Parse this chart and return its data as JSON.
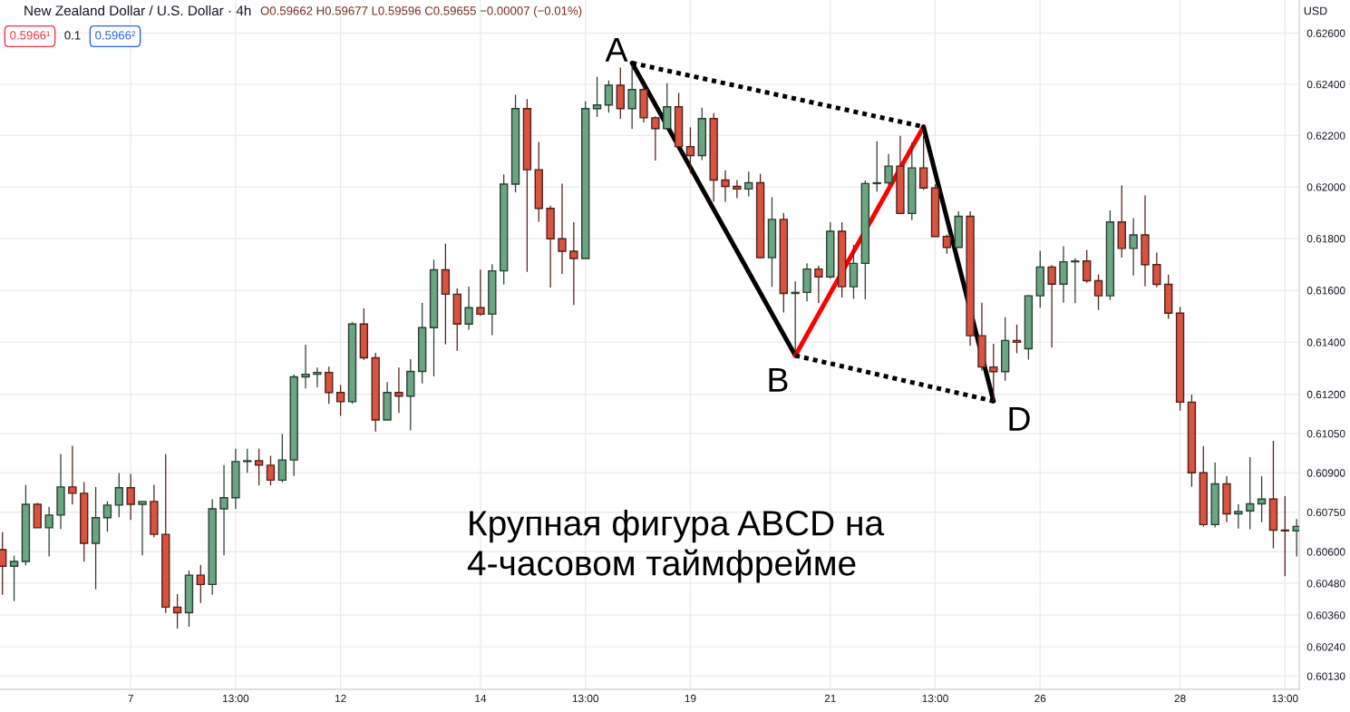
{
  "chart_data": {
    "type": "candlestick",
    "title": "New Zealand Dollar / U.S. Dollar · 4h",
    "subtitle": "O0.59662 H0.59677 L0.59596 C0.59655 −0.00007 (−0.01%)",
    "categories": [
      null,
      null,
      null,
      null,
      null,
      null,
      null,
      null,
      null,
      null,
      null,
      "7",
      null,
      null,
      null,
      null,
      null,
      null,
      null,
      null,
      "13:00",
      null,
      null,
      null,
      null,
      null,
      null,
      null,
      null,
      "12",
      null,
      null,
      null,
      null,
      null,
      null,
      null,
      null,
      null,
      null,
      null,
      "14",
      null,
      null,
      null,
      null,
      null,
      null,
      null,
      null,
      "13:00",
      null,
      null,
      null,
      null,
      null,
      null,
      null,
      null,
      "19",
      null,
      null,
      null,
      null,
      null,
      null,
      null,
      null,
      null,
      null,
      null,
      "21",
      null,
      null,
      null,
      null,
      null,
      null,
      null,
      null,
      "13:00",
      null,
      null,
      null,
      null,
      null,
      null,
      null,
      null,
      "26",
      null,
      null,
      null,
      null,
      null,
      null,
      null,
      null,
      null,
      null,
      null,
      "28",
      null,
      null,
      null,
      null,
      null,
      null,
      null,
      null,
      "13:00",
      null
    ],
    "ohlc": [
      [
        0.60608,
        0.60674,
        0.60437,
        0.60545
      ],
      [
        0.60545,
        0.60585,
        0.60413,
        0.60563
      ],
      [
        0.60563,
        0.60854,
        0.60548,
        0.6078
      ],
      [
        0.6078,
        0.60785,
        0.60691,
        0.60691
      ],
      [
        0.60691,
        0.60771,
        0.60582,
        0.60739
      ],
      [
        0.60739,
        0.60972,
        0.60686,
        0.60846
      ],
      [
        0.60846,
        0.61003,
        0.60779,
        0.60822
      ],
      [
        0.60822,
        0.60865,
        0.60562,
        0.60632
      ],
      [
        0.60632,
        0.60846,
        0.60458,
        0.60729
      ],
      [
        0.60729,
        0.60792,
        0.60676,
        0.60777
      ],
      [
        0.60777,
        0.60899,
        0.60731,
        0.60843
      ],
      [
        0.60843,
        0.60896,
        0.60721,
        0.6078
      ],
      [
        0.6078,
        0.60791,
        0.60586,
        0.60791
      ],
      [
        0.60791,
        0.60854,
        0.60655,
        0.60666
      ],
      [
        0.60666,
        0.60972,
        0.60368,
        0.6039
      ],
      [
        0.6039,
        0.60439,
        0.60309,
        0.60369
      ],
      [
        0.60369,
        0.60528,
        0.60316,
        0.60511
      ],
      [
        0.60511,
        0.6055,
        0.60406,
        0.60476
      ],
      [
        0.60476,
        0.60799,
        0.60437,
        0.60763
      ],
      [
        0.60763,
        0.6093,
        0.60586,
        0.60805
      ],
      [
        0.60805,
        0.60992,
        0.60762,
        0.60943
      ],
      [
        0.60943,
        0.60992,
        0.609,
        0.60946
      ],
      [
        0.60946,
        0.60992,
        0.60852,
        0.60929
      ],
      [
        0.60929,
        0.60965,
        0.60852,
        0.60872
      ],
      [
        0.60872,
        0.61048,
        0.60864,
        0.60949
      ],
      [
        0.60949,
        0.61277,
        0.60888,
        0.61267
      ],
      [
        0.61267,
        0.61391,
        0.61223,
        0.61277
      ],
      [
        0.61277,
        0.61303,
        0.61227,
        0.61284
      ],
      [
        0.61284,
        0.61306,
        0.61164,
        0.61207
      ],
      [
        0.61207,
        0.61236,
        0.61118,
        0.61172
      ],
      [
        0.61172,
        0.61477,
        0.61164,
        0.6147
      ],
      [
        0.6147,
        0.6153,
        0.61332,
        0.6134
      ],
      [
        0.6134,
        0.61359,
        0.61058,
        0.61102
      ],
      [
        0.61102,
        0.61247,
        0.61102,
        0.61207
      ],
      [
        0.61207,
        0.61303,
        0.61129,
        0.61193
      ],
      [
        0.61193,
        0.61335,
        0.61062,
        0.61288
      ],
      [
        0.61288,
        0.61551,
        0.61242,
        0.61456
      ],
      [
        0.61456,
        0.61718,
        0.61269,
        0.61679
      ],
      [
        0.61679,
        0.6178,
        0.61392,
        0.61585
      ],
      [
        0.61585,
        0.61607,
        0.61367,
        0.6147
      ],
      [
        0.6147,
        0.61614,
        0.61448,
        0.61533
      ],
      [
        0.61533,
        0.6168,
        0.61502,
        0.61508
      ],
      [
        0.61508,
        0.61701,
        0.61427,
        0.61675
      ],
      [
        0.61675,
        0.62049,
        0.61622,
        0.62011
      ],
      [
        0.62011,
        0.62359,
        0.61979,
        0.62305
      ],
      [
        0.62305,
        0.62342,
        0.61671,
        0.62067
      ],
      [
        0.62067,
        0.62175,
        0.61865,
        0.61917
      ],
      [
        0.61917,
        0.61927,
        0.61611,
        0.61799
      ],
      [
        0.61799,
        0.62013,
        0.61663,
        0.61751
      ],
      [
        0.61751,
        0.61863,
        0.61543,
        0.61723
      ],
      [
        0.61723,
        0.62333,
        0.61723,
        0.62305
      ],
      [
        0.62305,
        0.62429,
        0.62272,
        0.62319
      ],
      [
        0.62319,
        0.62415,
        0.62289,
        0.62396
      ],
      [
        0.62396,
        0.62465,
        0.62265,
        0.62305
      ],
      [
        0.62305,
        0.62475,
        0.62226,
        0.62379
      ],
      [
        0.62379,
        0.624,
        0.62251,
        0.62269
      ],
      [
        0.62269,
        0.62275,
        0.62103,
        0.62227
      ],
      [
        0.62227,
        0.62404,
        0.62227,
        0.62312
      ],
      [
        0.62312,
        0.62366,
        0.62157,
        0.62157
      ],
      [
        0.62157,
        0.62232,
        0.62054,
        0.62122
      ],
      [
        0.62122,
        0.62308,
        0.62104,
        0.62266
      ],
      [
        0.62266,
        0.62287,
        0.61942,
        0.62027
      ],
      [
        0.62027,
        0.62065,
        0.61942,
        0.62002
      ],
      [
        0.62002,
        0.62027,
        0.61956,
        0.61992
      ],
      [
        0.61992,
        0.62059,
        0.61963,
        0.62016
      ],
      [
        0.62016,
        0.62051,
        0.61723,
        0.61726
      ],
      [
        0.61726,
        0.6196,
        0.61613,
        0.61874
      ],
      [
        0.61874,
        0.61899,
        0.61515,
        0.61588
      ],
      [
        0.61588,
        0.61634,
        0.6135,
        0.61592
      ],
      [
        0.61592,
        0.61704,
        0.61557,
        0.61682
      ],
      [
        0.61682,
        0.61695,
        0.6155,
        0.61652
      ],
      [
        0.61652,
        0.61863,
        0.61645,
        0.61828
      ],
      [
        0.61828,
        0.61863,
        0.61572,
        0.61614
      ],
      [
        0.61614,
        0.61775,
        0.61567,
        0.61704
      ],
      [
        0.61704,
        0.62025,
        0.61565,
        0.62013
      ],
      [
        0.62013,
        0.62178,
        0.61982,
        0.62016
      ],
      [
        0.62016,
        0.62128,
        0.62007,
        0.62081
      ],
      [
        0.62081,
        0.62199,
        0.61897,
        0.61897
      ],
      [
        0.61897,
        0.62173,
        0.61871,
        0.62074
      ],
      [
        0.62074,
        0.62199,
        0.61988,
        0.61996
      ],
      [
        0.61996,
        0.6201,
        0.61808,
        0.61808
      ],
      [
        0.61808,
        0.61815,
        0.61741,
        0.61766
      ],
      [
        0.61766,
        0.61905,
        0.61766,
        0.61886
      ],
      [
        0.61886,
        0.61905,
        0.61386,
        0.61425
      ],
      [
        0.61425,
        0.61552,
        0.61291,
        0.61305
      ],
      [
        0.61305,
        0.61394,
        0.61175,
        0.61287
      ],
      [
        0.61287,
        0.61496,
        0.61252,
        0.61407
      ],
      [
        0.61407,
        0.61468,
        0.61358,
        0.614
      ],
      [
        0.61375,
        0.61582,
        0.61333,
        0.61579
      ],
      [
        0.61579,
        0.61753,
        0.61533,
        0.6169
      ],
      [
        0.6169,
        0.61697,
        0.61379,
        0.61624
      ],
      [
        0.61624,
        0.6177,
        0.61552,
        0.6171
      ],
      [
        0.6171,
        0.61724,
        0.6155,
        0.61713
      ],
      [
        0.61713,
        0.61755,
        0.61629,
        0.61637
      ],
      [
        0.61637,
        0.61661,
        0.61524,
        0.61579
      ],
      [
        0.61579,
        0.61909,
        0.61563,
        0.61864
      ],
      [
        0.61864,
        0.62006,
        0.61726,
        0.61762
      ],
      [
        0.61762,
        0.61879,
        0.61657,
        0.61814
      ],
      [
        0.61814,
        0.61967,
        0.61615,
        0.61699
      ],
      [
        0.61699,
        0.61746,
        0.61612,
        0.61623
      ],
      [
        0.61623,
        0.61661,
        0.6149,
        0.61512
      ],
      [
        0.61512,
        0.61536,
        0.61138,
        0.6117
      ],
      [
        0.6117,
        0.61199,
        0.60847,
        0.609
      ],
      [
        0.609,
        0.61002,
        0.60695,
        0.60703
      ],
      [
        0.60703,
        0.60939,
        0.60692,
        0.60858
      ],
      [
        0.60858,
        0.60887,
        0.60712,
        0.60744
      ],
      [
        0.60744,
        0.6078,
        0.60688,
        0.60753
      ],
      [
        0.60755,
        0.6096,
        0.60685,
        0.60782
      ],
      [
        0.60782,
        0.60887,
        0.60712,
        0.608
      ],
      [
        0.608,
        0.61022,
        0.60613,
        0.60682
      ],
      [
        0.60682,
        0.60811,
        0.60507,
        0.60679
      ],
      [
        0.60679,
        0.60724,
        0.60582,
        0.60696
      ]
    ],
    "colors": [
      "#d75442",
      "#6ba583",
      "#6ba583",
      "#d75442",
      "#6ba583",
      "#6ba583",
      "#d75442",
      "#d75442",
      "#6ba583",
      "#6ba583",
      "#6ba583",
      "#d75442",
      "#6ba583",
      "#d75442",
      "#d75442",
      "#d75442",
      "#6ba583",
      "#d75442",
      "#6ba583",
      "#6ba583",
      "#6ba583",
      "#6ba583",
      "#d75442",
      "#d75442",
      "#6ba583",
      "#6ba583",
      "#6ba583",
      "#6ba583",
      "#d75442",
      "#d75442",
      "#6ba583",
      "#d75442",
      "#d75442",
      "#6ba583",
      "#d75442",
      "#6ba583",
      "#6ba583",
      "#6ba583",
      "#d75442",
      "#d75442",
      "#6ba583",
      "#d75442",
      "#6ba583",
      "#6ba583",
      "#6ba583",
      "#d75442",
      "#d75442",
      "#d75442",
      "#d75442",
      "#d75442",
      "#6ba583",
      "#6ba583",
      "#6ba583",
      "#d75442",
      "#6ba583",
      "#d75442",
      "#d75442",
      "#6ba583",
      "#d75442",
      "#d75442",
      "#6ba583",
      "#d75442",
      "#d75442",
      "#d75442",
      "#6ba583",
      "#d75442",
      "#6ba583",
      "#d75442",
      "#6ba583",
      "#6ba583",
      "#d75442",
      "#6ba583",
      "#d75442",
      "#6ba583",
      "#6ba583",
      "#6ba583",
      "#6ba583",
      "#d75442",
      "#6ba583",
      "#d75442",
      "#d75442",
      "#d75442",
      "#6ba583",
      "#d75442",
      "#d75442",
      "#d75442",
      "#6ba583",
      "#d75442",
      "#6ba583",
      "#6ba583",
      "#d75442",
      "#6ba583",
      "#6ba583",
      "#d75442",
      "#d75442",
      "#6ba583",
      "#d75442",
      "#6ba583",
      "#d75442",
      "#d75442",
      "#d75442",
      "#d75442",
      "#d75442",
      "#d75442",
      "#6ba583",
      "#d75442",
      "#6ba583",
      "#6ba583",
      "#6ba583",
      "#d75442",
      "#d75442",
      "#6ba583"
    ],
    "series": [
      {
        "type": "line",
        "color": "#000000",
        "line_style": "solid",
        "values": [
          null,
          null,
          null,
          null,
          null,
          null,
          null,
          null,
          null,
          null,
          null,
          null,
          null,
          null,
          null,
          null,
          null,
          null,
          null,
          null,
          null,
          null,
          null,
          null,
          null,
          null,
          null,
          null,
          null,
          null,
          null,
          null,
          null,
          null,
          null,
          null,
          null,
          null,
          null,
          null,
          null,
          null,
          null,
          null,
          null,
          null,
          null,
          null,
          null,
          null,
          null,
          null,
          null,
          null,
          0.62483,
          null,
          null,
          null,
          null,
          null,
          null,
          null,
          null,
          null,
          null,
          null,
          null,
          null,
          0.61349,
          null,
          null,
          null,
          null,
          null,
          null,
          null,
          null,
          null,
          null,
          null,
          null,
          null,
          null,
          null,
          null,
          null,
          null,
          null,
          null,
          null,
          null,
          null,
          null,
          null,
          null,
          null,
          null,
          null,
          null,
          null,
          null,
          null,
          null,
          null,
          null,
          null,
          null,
          null,
          null,
          null,
          null,
          null
        ]
      },
      {
        "type": "line",
        "color": "#ff0000",
        "line_style": "solid",
        "values": [
          null,
          null,
          null,
          null,
          null,
          null,
          null,
          null,
          null,
          null,
          null,
          null,
          null,
          null,
          null,
          null,
          null,
          null,
          null,
          null,
          null,
          null,
          null,
          null,
          null,
          null,
          null,
          null,
          null,
          null,
          null,
          null,
          null,
          null,
          null,
          null,
          null,
          null,
          null,
          null,
          null,
          null,
          null,
          null,
          null,
          null,
          null,
          null,
          null,
          null,
          null,
          null,
          null,
          null,
          null,
          null,
          null,
          null,
          null,
          null,
          null,
          null,
          null,
          null,
          null,
          null,
          null,
          null,
          0.61349,
          null,
          null,
          null,
          null,
          null,
          null,
          null,
          null,
          null,
          null,
          0.62234,
          null,
          null,
          null,
          null,
          null,
          null,
          null,
          null,
          null,
          null,
          null,
          null,
          null,
          null,
          null,
          null,
          null,
          null,
          null,
          null,
          null,
          null,
          null,
          null,
          null,
          null,
          null,
          null,
          null,
          null,
          null,
          null
        ]
      },
      {
        "type": "line",
        "color": "#000000",
        "line_style": "solid",
        "values": [
          null,
          null,
          null,
          null,
          null,
          null,
          null,
          null,
          null,
          null,
          null,
          null,
          null,
          null,
          null,
          null,
          null,
          null,
          null,
          null,
          null,
          null,
          null,
          null,
          null,
          null,
          null,
          null,
          null,
          null,
          null,
          null,
          null,
          null,
          null,
          null,
          null,
          null,
          null,
          null,
          null,
          null,
          null,
          null,
          null,
          null,
          null,
          null,
          null,
          null,
          null,
          null,
          null,
          null,
          null,
          null,
          null,
          null,
          null,
          null,
          null,
          null,
          null,
          null,
          null,
          null,
          null,
          null,
          null,
          null,
          null,
          null,
          null,
          null,
          null,
          null,
          null,
          null,
          null,
          0.62234,
          null,
          null,
          null,
          null,
          null,
          0.61174,
          null,
          null,
          null,
          null,
          null,
          null,
          null,
          null,
          null,
          null,
          null,
          null,
          null,
          null,
          null,
          null,
          null,
          null,
          null,
          null,
          null,
          null,
          null,
          null,
          null,
          null
        ]
      },
      {
        "type": "line",
        "color": "#000000",
        "line_style": "dotted",
        "values": [
          null,
          null,
          null,
          null,
          null,
          null,
          null,
          null,
          null,
          null,
          null,
          null,
          null,
          null,
          null,
          null,
          null,
          null,
          null,
          null,
          null,
          null,
          null,
          null,
          null,
          null,
          null,
          null,
          null,
          null,
          null,
          null,
          null,
          null,
          null,
          null,
          null,
          null,
          null,
          null,
          null,
          null,
          null,
          null,
          null,
          null,
          null,
          null,
          null,
          null,
          null,
          null,
          null,
          null,
          0.62483,
          null,
          null,
          null,
          null,
          null,
          null,
          null,
          null,
          null,
          null,
          null,
          null,
          null,
          null,
          null,
          null,
          null,
          null,
          null,
          null,
          null,
          null,
          null,
          null,
          0.62234,
          null,
          null,
          null,
          null,
          null,
          null,
          null,
          null,
          null,
          null,
          null,
          null,
          null,
          null,
          null,
          null,
          null,
          null,
          null,
          null,
          null,
          null,
          null,
          null,
          null,
          null,
          null,
          null,
          null,
          null,
          null,
          null
        ]
      },
      {
        "type": "line",
        "color": "#000000",
        "line_style": "dotted",
        "values": [
          null,
          null,
          null,
          null,
          null,
          null,
          null,
          null,
          null,
          null,
          null,
          null,
          null,
          null,
          null,
          null,
          null,
          null,
          null,
          null,
          null,
          null,
          null,
          null,
          null,
          null,
          null,
          null,
          null,
          null,
          null,
          null,
          null,
          null,
          null,
          null,
          null,
          null,
          null,
          null,
          null,
          null,
          null,
          null,
          null,
          null,
          null,
          null,
          null,
          null,
          null,
          null,
          null,
          null,
          null,
          null,
          null,
          null,
          null,
          null,
          null,
          null,
          null,
          null,
          null,
          null,
          null,
          null,
          0.61349,
          null,
          null,
          null,
          null,
          null,
          null,
          null,
          null,
          null,
          null,
          null,
          null,
          null,
          null,
          null,
          null,
          0.61174,
          null,
          null,
          null,
          null,
          null,
          null,
          null,
          null,
          null,
          null,
          null,
          null,
          null,
          null,
          null,
          null,
          null,
          null,
          null,
          null,
          null,
          null,
          null,
          null,
          null,
          null
        ]
      }
    ],
    "ylim": [
      0.6008,
      0.6273
    ],
    "yticks": [
      {
        "value": 0.626,
        "label": "0.62600"
      },
      {
        "value": 0.624,
        "label": "0.62400"
      },
      {
        "value": 0.622,
        "label": "0.62200"
      },
      {
        "value": 0.62,
        "label": "0.62000"
      },
      {
        "value": 0.618,
        "label": "0.61800"
      },
      {
        "value": 0.616,
        "label": "0.61600"
      },
      {
        "value": 0.614,
        "label": "0.61400"
      },
      {
        "value": 0.612,
        "label": "0.61200"
      },
      {
        "value": 0.6105,
        "label": "0.61050"
      },
      {
        "value": 0.609,
        "label": "0.60900"
      },
      {
        "value": 0.6075,
        "label": "0.60750"
      },
      {
        "value": 0.606,
        "label": "0.60600"
      },
      {
        "value": 0.6048,
        "label": "0.60480"
      },
      {
        "value": 0.6036,
        "label": "0.60360"
      },
      {
        "value": 0.6024,
        "label": "0.60240"
      },
      {
        "value": 0.6013,
        "label": "0.60130"
      }
    ],
    "log": true,
    "grid": true,
    "annotations": [
      "0.5966¹",
      "0.1",
      "0.5966²",
      "USD",
      "Крупная фигура ABCD на\n4-часовом таймфрейме",
      "A",
      "B",
      "D"
    ]
  }
}
